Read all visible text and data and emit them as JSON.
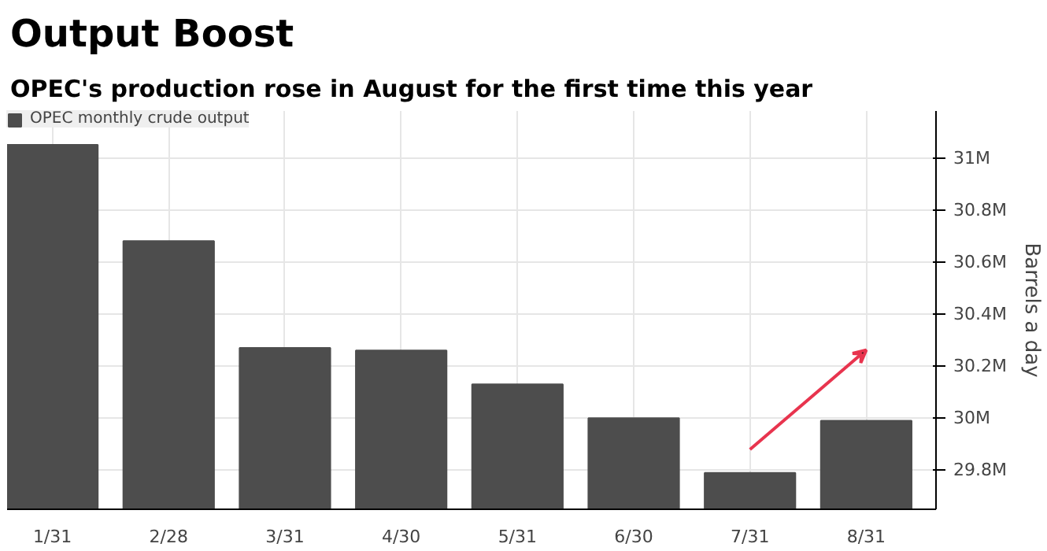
{
  "chart_data": {
    "type": "bar",
    "title": "Output Boost",
    "subtitle": "OPEC's production rose in August for the first time this year",
    "ylabel": "Barrels a day",
    "categories": [
      "1/31",
      "2/28",
      "3/31",
      "4/30",
      "5/31",
      "6/30",
      "7/31",
      "8/31"
    ],
    "series": [
      {
        "name": "OPEC monthly crude output",
        "color": "#4d4d4d",
        "values": [
          31.05,
          30.68,
          30.27,
          30.26,
          30.13,
          30.0,
          29.79,
          29.99
        ]
      }
    ],
    "ylim": [
      29.65,
      31.18
    ],
    "yticks": [
      {
        "value": 29.8,
        "label": "29.8M"
      },
      {
        "value": 30.0,
        "label": "30M"
      },
      {
        "value": 30.2,
        "label": "30.2M"
      },
      {
        "value": 30.4,
        "label": "30.4M"
      },
      {
        "value": 30.6,
        "label": "30.6M"
      },
      {
        "value": 30.8,
        "label": "30.8M"
      },
      {
        "value": 31.0,
        "label": "31M"
      }
    ],
    "grid": true,
    "legend": "top left"
  }
}
